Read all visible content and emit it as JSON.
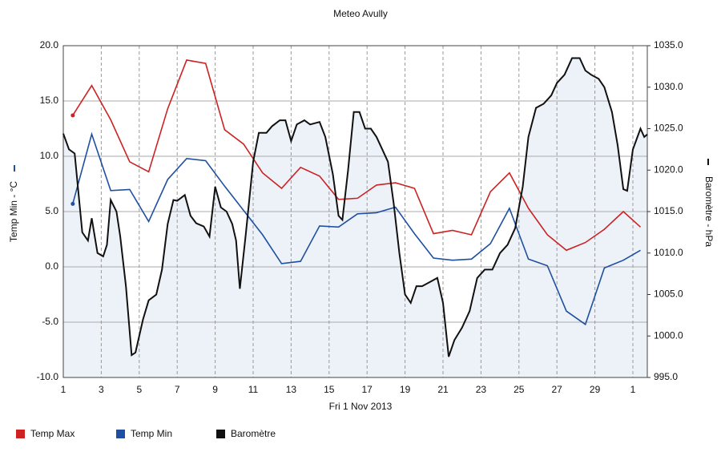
{
  "chart_data": {
    "type": "line",
    "title": "Meteo  Avully",
    "x_label": "Fri 1 Nov 2013",
    "y_label": "Temp Min - °C",
    "y2_label": "Baromètre - hPa",
    "xlim": [
      1,
      31.76
    ],
    "xticks": [
      1,
      3,
      5,
      7,
      9,
      11,
      13,
      15,
      17,
      19,
      21,
      23,
      25,
      27,
      29,
      {
        "value": 31,
        "label": "1"
      }
    ],
    "ylim": [
      -10,
      20
    ],
    "yticks": [
      {
        "value": -10,
        "label": "-10.0"
      },
      {
        "value": -5,
        "label": "-5.0"
      },
      {
        "value": 0,
        "label": "0.0"
      },
      {
        "value": 5,
        "label": "5.0"
      },
      {
        "value": 10,
        "label": "10.0"
      },
      {
        "value": 15,
        "label": "15.0"
      },
      {
        "value": 20,
        "label": "20.0"
      }
    ],
    "y2lim": [
      995,
      1035
    ],
    "y2ticks": [
      {
        "value": 995,
        "label": "995.0"
      },
      {
        "value": 1000,
        "label": "1000.0"
      },
      {
        "value": 1005,
        "label": "1005.0"
      },
      {
        "value": 1010,
        "label": "1010.0"
      },
      {
        "value": 1015,
        "label": "1015.0"
      },
      {
        "value": 1020,
        "label": "1020.0"
      },
      {
        "value": 1025,
        "label": "1025.0"
      },
      {
        "value": 1030,
        "label": "1030.0"
      },
      {
        "value": 1035,
        "label": "1035.0"
      }
    ],
    "grid": true,
    "series": [
      {
        "name": "Temp Max",
        "color": "#cc2222",
        "x": [
          1.5,
          2.5,
          3.5,
          4.5,
          5.5,
          6.5,
          7.5,
          8.5,
          9.5,
          10.5,
          11.5,
          12.5,
          13.5,
          14.5,
          15.5,
          16.5,
          17.5,
          18.5,
          19.5,
          20.5,
          21.5,
          22.5,
          23.5,
          24.5,
          25.5,
          26.5,
          27.5,
          28.5,
          29.5,
          30.5,
          31.4
        ],
        "values": [
          13.7,
          16.4,
          13.3,
          9.5,
          8.6,
          14.3,
          18.7,
          18.4,
          12.4,
          11.1,
          8.5,
          7.1,
          9.0,
          8.2,
          6.1,
          6.2,
          7.4,
          7.6,
          7.1,
          3.0,
          3.3,
          2.9,
          6.8,
          8.5,
          5.3,
          2.9,
          1.5,
          2.2,
          3.4,
          5.0,
          3.6
        ]
      },
      {
        "name": "Temp Min",
        "color": "#1f4fa0",
        "x": [
          1.5,
          2.5,
          3.5,
          4.5,
          5.5,
          6.5,
          7.5,
          8.5,
          9.5,
          10.5,
          11.5,
          12.5,
          13.5,
          14.5,
          15.5,
          16.5,
          17.5,
          18.5,
          19.5,
          20.5,
          21.5,
          22.5,
          23.5,
          24.5,
          25.5,
          26.5,
          27.5,
          28.5,
          29.5,
          30.5,
          31.4
        ],
        "values": [
          5.7,
          12.0,
          6.9,
          7.0,
          4.1,
          7.9,
          9.8,
          9.6,
          7.3,
          5.1,
          2.9,
          0.3,
          0.5,
          3.7,
          3.6,
          4.8,
          4.9,
          5.4,
          3.0,
          0.8,
          0.6,
          0.7,
          2.1,
          5.3,
          0.7,
          0.1,
          -4.0,
          -5.2,
          -0.1,
          0.6,
          1.5
        ]
      },
      {
        "name": "Baromètre",
        "color": "#111111",
        "axis": "y2",
        "area_color": "#edf2f9",
        "x": [
          1.0,
          1.3,
          1.6,
          2.0,
          2.3,
          2.5,
          2.8,
          3.1,
          3.3,
          3.5,
          3.8,
          4.0,
          4.3,
          4.6,
          4.8,
          5.2,
          5.5,
          5.9,
          6.2,
          6.5,
          6.8,
          7.0,
          7.4,
          7.7,
          8.0,
          8.4,
          8.7,
          9.0,
          9.3,
          9.6,
          9.9,
          10.1,
          10.3,
          10.6,
          11.0,
          11.3,
          11.7,
          12.0,
          12.4,
          12.7,
          13.0,
          13.3,
          13.7,
          14.0,
          14.5,
          14.8,
          15.2,
          15.5,
          15.7,
          16.0,
          16.3,
          16.6,
          16.9,
          17.2,
          17.5,
          17.8,
          18.1,
          18.4,
          18.7,
          19.0,
          19.3,
          19.6,
          19.9,
          20.3,
          20.7,
          21.0,
          21.3,
          21.6,
          22.0,
          22.4,
          22.8,
          23.2,
          23.6,
          24.0,
          24.4,
          24.8,
          25.2,
          25.5,
          25.9,
          26.3,
          26.7,
          27.0,
          27.4,
          27.8,
          28.2,
          28.5,
          28.8,
          29.2,
          29.5,
          29.9,
          30.2,
          30.5,
          30.7,
          31.0,
          31.4,
          31.6,
          31.76
        ],
        "values": [
          1024.4,
          1022.5,
          1022.0,
          1012.5,
          1011.5,
          1014.2,
          1010.0,
          1009.6,
          1011.0,
          1016.4,
          1015.0,
          1012.0,
          1006.0,
          997.7,
          998.0,
          1002.0,
          1004.3,
          1005.0,
          1008.0,
          1013.5,
          1016.4,
          1016.3,
          1017.0,
          1014.5,
          1013.6,
          1013.2,
          1012.0,
          1018.0,
          1015.5,
          1015.0,
          1013.5,
          1011.5,
          1005.7,
          1012.0,
          1021.0,
          1024.5,
          1024.5,
          1025.3,
          1026.0,
          1026.0,
          1023.5,
          1025.5,
          1026.0,
          1025.5,
          1025.8,
          1024.0,
          1019.5,
          1014.5,
          1014.0,
          1020.0,
          1027.0,
          1027.0,
          1025.0,
          1025.0,
          1024.0,
          1022.5,
          1021.0,
          1016.0,
          1010.0,
          1005.0,
          1004.0,
          1006.0,
          1006.0,
          1006.5,
          1007.0,
          1004.0,
          997.5,
          999.5,
          1001.0,
          1003.0,
          1007.0,
          1008.0,
          1008.0,
          1010.0,
          1011.0,
          1013.0,
          1018.0,
          1024.0,
          1027.5,
          1028.0,
          1029.0,
          1030.5,
          1031.5,
          1033.5,
          1033.5,
          1032.0,
          1031.5,
          1031.0,
          1030.0,
          1027.0,
          1023.0,
          1017.7,
          1017.5,
          1022.5,
          1025.0,
          1024.0,
          1024.3
        ]
      }
    ]
  }
}
